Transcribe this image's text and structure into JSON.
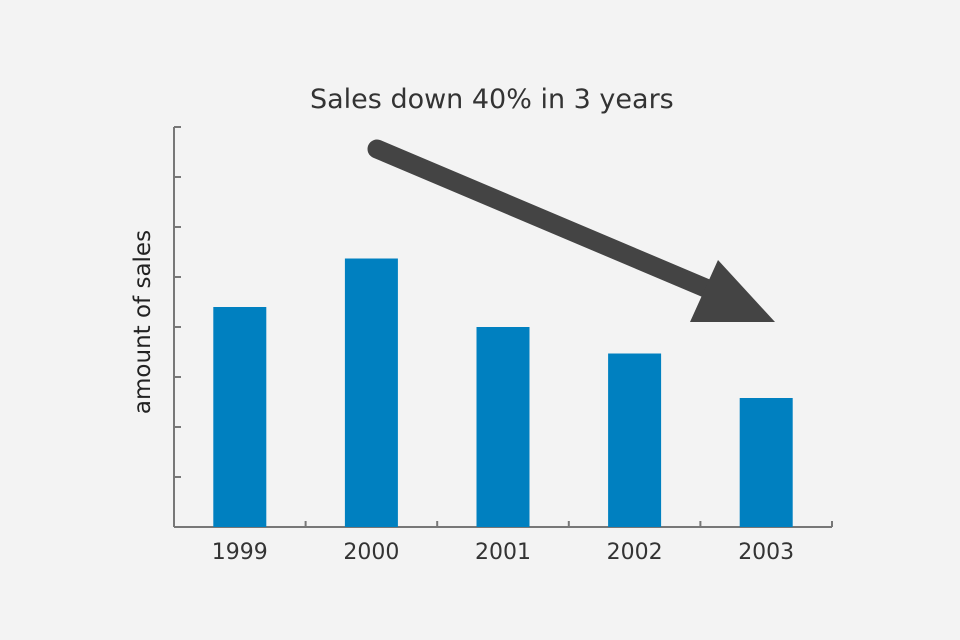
{
  "chart_data": {
    "type": "bar",
    "title": "",
    "annotation": "Sales down 40% in 3 years",
    "xlabel": "",
    "ylabel": "amount of sales",
    "categories": [
      "1999",
      "2000",
      "2001",
      "2002",
      "2003"
    ],
    "values": [
      4.4,
      5.37,
      4.0,
      3.47,
      2.58
    ],
    "ylim": [
      0,
      8
    ],
    "ytick_labels_shown": false,
    "grid": false,
    "legend": "none",
    "colors": {
      "bar": "#0080c0",
      "axis": "#777777",
      "arrow": "#444444",
      "background": "#f3f3f3"
    }
  }
}
